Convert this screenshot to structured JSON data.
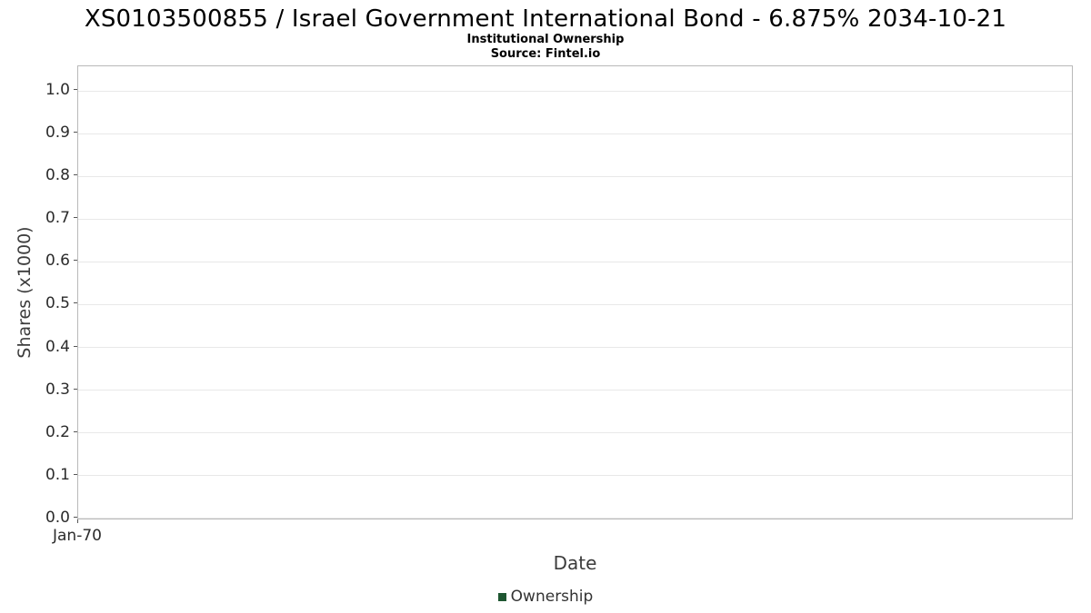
{
  "chart_data": {
    "type": "line",
    "title": "XS0103500855 / Israel Government International Bond - 6.875% 2034-10-21",
    "subtitle": "Institutional Ownership",
    "source": "Source: Fintel.io",
    "xlabel": "Date",
    "ylabel": "Shares (x1000)",
    "ylim": [
      0.0,
      1.0
    ],
    "xtick_labels": [
      "Jan-70"
    ],
    "ytick_labels": [
      "1.0",
      "0.9",
      "0.8",
      "0.7",
      "0.6",
      "0.5",
      "0.4",
      "0.3",
      "0.2",
      "0.1",
      "0.0"
    ],
    "grid": "horizontal gridlines on",
    "legend_position": "bottom-center",
    "series": [
      {
        "name": "Ownership",
        "color": "#1e5631",
        "x": [],
        "values": []
      }
    ]
  },
  "legend": {
    "ownership_label": "Ownership",
    "swatch_color": "#1e5631"
  }
}
